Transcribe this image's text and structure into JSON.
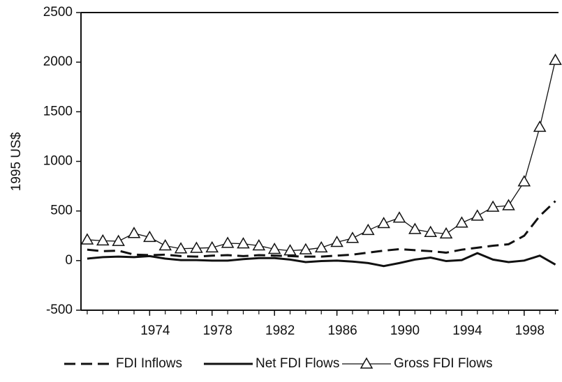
{
  "chart_data": {
    "type": "line",
    "y_label": "1995 US$",
    "x": [
      1970,
      1971,
      1972,
      1973,
      1974,
      1975,
      1976,
      1977,
      1978,
      1979,
      1980,
      1981,
      1982,
      1983,
      1984,
      1985,
      1986,
      1987,
      1988,
      1989,
      1990,
      1991,
      1992,
      1993,
      1994,
      1995,
      1996,
      1997,
      1998,
      1999,
      2000
    ],
    "series": [
      {
        "name": "FDI Inflows",
        "color": "#111111",
        "dash": "dashed",
        "marker": "none",
        "values": [
          110,
          95,
          100,
          60,
          55,
          60,
          45,
          40,
          50,
          55,
          45,
          55,
          50,
          45,
          40,
          40,
          50,
          60,
          80,
          100,
          115,
          105,
          95,
          80,
          110,
          130,
          150,
          165,
          250,
          450,
          600
        ]
      },
      {
        "name": "Net FDI Flows",
        "color": "#111111",
        "dash": "solid",
        "marker": "none",
        "values": [
          20,
          35,
          40,
          35,
          45,
          20,
          5,
          5,
          0,
          0,
          15,
          25,
          25,
          10,
          -15,
          -5,
          0,
          -10,
          -25,
          -55,
          -25,
          10,
          30,
          -5,
          5,
          75,
          10,
          -15,
          0,
          50,
          -40
        ]
      },
      {
        "name": "Gross FDI Flows",
        "color": "#111111",
        "dash": "solid",
        "marker": "triangle",
        "values": [
          210,
          200,
          195,
          275,
          235,
          150,
          120,
          125,
          130,
          175,
          170,
          150,
          115,
          100,
          110,
          130,
          185,
          225,
          305,
          375,
          430,
          315,
          285,
          270,
          380,
          450,
          540,
          555,
          795,
          1345,
          2020
        ]
      }
    ],
    "xlim": [
      1969.6,
      2000.2
    ],
    "xticks": [
      1974,
      1978,
      1982,
      1986,
      1990,
      1994,
      1998
    ],
    "ylim": [
      -500,
      2500
    ],
    "yticks": [
      -500,
      0,
      500,
      1000,
      1500,
      2000,
      2500
    ],
    "legend": "bottom"
  }
}
